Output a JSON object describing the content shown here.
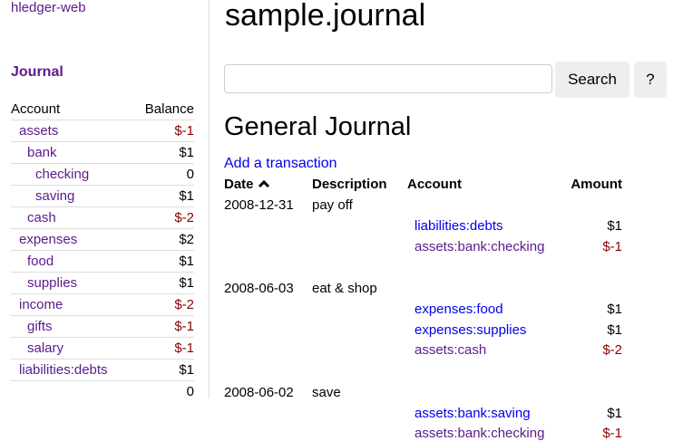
{
  "sidebar": {
    "brand": "hledger-web",
    "journal_link": "Journal",
    "headers": {
      "account": "Account",
      "balance": "Balance"
    },
    "rows": [
      {
        "name": "assets",
        "balance": "$-1",
        "depth": 0,
        "neg": true
      },
      {
        "name": "bank",
        "balance": "$1",
        "depth": 1
      },
      {
        "name": "checking",
        "balance": "0",
        "depth": 2
      },
      {
        "name": "saving",
        "balance": "$1",
        "depth": 2
      },
      {
        "name": "cash",
        "balance": "$-2",
        "depth": 1,
        "neg": true
      },
      {
        "name": "expenses",
        "balance": "$2",
        "depth": 0
      },
      {
        "name": "food",
        "balance": "$1",
        "depth": 1
      },
      {
        "name": "supplies",
        "balance": "$1",
        "depth": 1
      },
      {
        "name": "income",
        "balance": "$-2",
        "depth": 0,
        "neg": true
      },
      {
        "name": "gifts",
        "balance": "$-1",
        "depth": 1,
        "neg": true
      },
      {
        "name": "salary",
        "balance": "$-1",
        "depth": 1,
        "neg": true
      },
      {
        "name": "liabilities:debts",
        "balance": "$1",
        "depth": 0
      }
    ],
    "total": "0"
  },
  "header": {
    "title": "sample.journal",
    "search_placeholder": "",
    "search_button": "Search",
    "help_button": "?"
  },
  "journal": {
    "title": "General Journal",
    "add_link": "Add a transaction",
    "columns": {
      "date": "Date",
      "description": "Description",
      "account": "Account",
      "amount": "Amount"
    },
    "sort_icon": "chevron-up-icon",
    "transactions": [
      {
        "date": "2008-12-31",
        "description": "pay off",
        "postings": [
          {
            "account": "liabilities:debts",
            "amount": "$1",
            "visited": false
          },
          {
            "account": "assets:bank:checking",
            "amount": "$-1",
            "visited": true,
            "neg": true
          }
        ]
      },
      {
        "date": "2008-06-03",
        "description": "eat & shop",
        "postings": [
          {
            "account": "expenses:food",
            "amount": "$1",
            "visited": false
          },
          {
            "account": "expenses:supplies",
            "amount": "$1",
            "visited": false
          },
          {
            "account": "assets:cash",
            "amount": "$-2",
            "visited": true,
            "neg": true
          }
        ]
      },
      {
        "date": "2008-06-02",
        "description": "save",
        "postings": [
          {
            "account": "assets:bank:saving",
            "amount": "$1",
            "visited": false
          },
          {
            "account": "assets:bank:checking",
            "amount": "$-1",
            "visited": true,
            "neg": true
          }
        ]
      }
    ]
  }
}
